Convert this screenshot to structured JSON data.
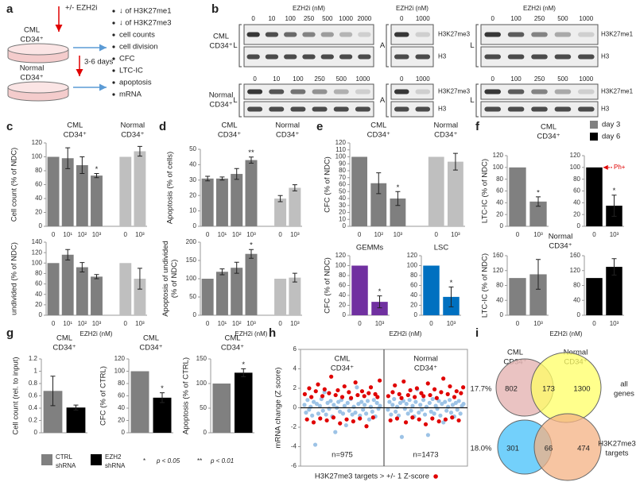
{
  "panel_labels": [
    "a",
    "b",
    "c",
    "d",
    "e",
    "f",
    "g",
    "h",
    "i"
  ],
  "panel_a": {
    "treatment": "+/- EZH2i",
    "samples": [
      [
        "CML",
        "CD34⁺"
      ],
      [
        "Normal",
        "CD34⁺"
      ]
    ],
    "duration": "3-6 days",
    "readouts": [
      "↓ of H3K27me1",
      "↓ of H3K27me3",
      "cell counts",
      "cell division",
      "CFC",
      "LTC-IC",
      "apoptosis",
      "mRNA"
    ]
  },
  "panel_b": {
    "dose_labels": [
      "EZH2i (nM)",
      "EZH2i (nM)",
      "EZH2i (nM)"
    ],
    "rows": [
      {
        "sample": [
          "CML",
          "CD34⁺"
        ],
        "fractions": [
          "L",
          "A",
          "L"
        ],
        "doses": [
          [
            0,
            10,
            100,
            250,
            500,
            1000,
            2000
          ],
          [
            0,
            1000
          ],
          [
            0,
            100,
            250,
            500,
            1000
          ]
        ],
        "bands": [
          [
            "H3K27me3",
            "H3"
          ],
          [
            "H3K27me1",
            "H3"
          ]
        ]
      },
      {
        "sample": [
          "Normal",
          "CD34⁺"
        ],
        "fractions": [
          "L",
          "A",
          "L"
        ],
        "doses": [
          [
            0,
            10,
            100,
            250,
            500,
            1000
          ],
          [
            0,
            1000
          ],
          [
            0,
            100,
            250,
            500,
            1000
          ]
        ],
        "bands": [
          [
            "H3K27me3",
            "H3"
          ],
          [
            "H3K27me1",
            "H3"
          ]
        ]
      }
    ]
  },
  "chart_data": [
    {
      "type": "bar",
      "group_labels": [
        [
          "CML",
          "CD34⁺"
        ],
        [
          "Normal",
          "CD34⁺"
        ]
      ],
      "ylabel": "Cell count (% of NDC)",
      "categories": [
        "0",
        "10¹",
        "10²",
        "10³",
        null,
        "0",
        "10³"
      ],
      "values": [
        100,
        98,
        88,
        73,
        null,
        100,
        108
      ],
      "errors": [
        null,
        15,
        12,
        3,
        null,
        null,
        7
      ],
      "colors": [
        "#7f7f7f",
        "#7f7f7f",
        "#7f7f7f",
        "#7f7f7f",
        null,
        "#bfbfbf",
        "#bfbfbf"
      ],
      "significance": [
        null,
        null,
        null,
        "*",
        null,
        null,
        null
      ],
      "ylim": [
        0,
        120
      ],
      "yticks": [
        0,
        20,
        40,
        60,
        80,
        100,
        120
      ]
    },
    {
      "type": "bar",
      "ylabel": "undivided (% of NDC)",
      "xlabel": "EZH2i (nM)",
      "categories": [
        "0",
        "10¹",
        "10²",
        "10³",
        null,
        "0",
        "10³"
      ],
      "values": [
        100,
        116,
        92,
        74,
        null,
        100,
        70
      ],
      "errors": [
        null,
        10,
        9,
        4,
        null,
        null,
        20
      ],
      "colors": [
        "#7f7f7f",
        "#7f7f7f",
        "#7f7f7f",
        "#7f7f7f",
        null,
        "#bfbfbf",
        "#bfbfbf"
      ],
      "ylim": [
        0,
        140
      ],
      "yticks": [
        0,
        20,
        40,
        60,
        80,
        100,
        120,
        140
      ]
    },
    {
      "type": "bar",
      "group_labels": [
        [
          "CML",
          "CD34⁺"
        ],
        [
          "Normal",
          "CD34⁺"
        ]
      ],
      "ylabel": "Apoptosis (% of cells)",
      "categories": [
        "0",
        "10¹",
        "10²",
        "10³",
        null,
        "0",
        "10³"
      ],
      "values": [
        31,
        31,
        34,
        43,
        null,
        18,
        25
      ],
      "errors": [
        1.5,
        1,
        3.5,
        2,
        null,
        2,
        2
      ],
      "colors": [
        "#7f7f7f",
        "#7f7f7f",
        "#7f7f7f",
        "#7f7f7f",
        null,
        "#bfbfbf",
        "#bfbfbf"
      ],
      "significance": [
        null,
        null,
        null,
        "**",
        null,
        null,
        null
      ],
      "ylim": [
        0,
        50
      ],
      "yticks": [
        0,
        10,
        20,
        30,
        40,
        50
      ]
    },
    {
      "type": "bar",
      "ylabel": [
        "Apoptosis of undivided",
        "(% of NDC)"
      ],
      "xlabel": "EZH2i (nM)",
      "categories": [
        "0",
        "10¹",
        "10²",
        "10³",
        null,
        "0",
        "10³"
      ],
      "values": [
        100,
        119,
        130,
        168,
        null,
        100,
        103
      ],
      "errors": [
        null,
        8,
        15,
        12,
        null,
        null,
        12
      ],
      "colors": [
        "#7f7f7f",
        "#7f7f7f",
        "#7f7f7f",
        "#7f7f7f",
        null,
        "#bfbfbf",
        "#bfbfbf"
      ],
      "significance": [
        null,
        null,
        null,
        "*",
        null,
        null,
        null
      ],
      "ylim": [
        0,
        200
      ],
      "yticks": [
        0,
        50,
        100,
        150,
        200
      ]
    },
    {
      "type": "bar",
      "group_labels": [
        [
          "CML",
          "CD34⁺"
        ],
        [
          "Normal",
          "CD34⁺"
        ]
      ],
      "ylabel": "CFC (% of NDC)",
      "categories": [
        "0",
        "10²",
        "10³",
        null,
        "0",
        "10³"
      ],
      "values": [
        100,
        62,
        40,
        null,
        100,
        93
      ],
      "errors": [
        null,
        15,
        10,
        null,
        null,
        12
      ],
      "colors": [
        "#7f7f7f",
        "#7f7f7f",
        "#7f7f7f",
        null,
        "#bfbfbf",
        "#bfbfbf"
      ],
      "significance": [
        null,
        null,
        "*",
        null,
        null,
        null
      ],
      "ylim": [
        0,
        120
      ],
      "yticks": [
        0,
        10,
        20,
        30,
        40,
        50,
        60,
        70,
        80,
        90,
        100,
        110,
        120
      ]
    },
    {
      "type": "bar",
      "title": "GEMMs",
      "ylabel": "CFC (% of NDC)",
      "xlabel": "EZH2i (nM)",
      "categories": [
        "0",
        "10³"
      ],
      "values": [
        100,
        27
      ],
      "errors": [
        null,
        12
      ],
      "colors": [
        "#7030a0",
        "#7030a0"
      ],
      "significance": [
        null,
        "*"
      ],
      "ylim": [
        0,
        120
      ],
      "yticks": [
        0,
        20,
        40,
        60,
        80,
        100,
        120
      ]
    },
    {
      "type": "bar",
      "title": "LSC",
      "categories": [
        "0",
        "10³"
      ],
      "values": [
        100,
        37
      ],
      "errors": [
        null,
        20
      ],
      "colors": [
        "#0070c0",
        "#0070c0"
      ],
      "significance": [
        null,
        "*"
      ],
      "ylim": [
        0,
        120
      ],
      "yticks": [
        0,
        20,
        40,
        60,
        80,
        100,
        120
      ]
    },
    {
      "type": "bar",
      "title": [
        "CML",
        "CD34⁺"
      ],
      "ylabel": "LTC-IC (% of NDC)",
      "categories": [
        "0",
        "10³"
      ],
      "values": [
        100,
        42
      ],
      "errors": [
        null,
        8
      ],
      "colors": [
        "#808080",
        "#808080"
      ],
      "significance": [
        null,
        "*"
      ],
      "ylim": [
        0,
        120
      ],
      "yticks": [
        0,
        20,
        40,
        60,
        80,
        100,
        120
      ]
    },
    {
      "type": "bar",
      "annotation": "Ph+",
      "annotation_color": "#e00000",
      "categories": [
        "0",
        "10³"
      ],
      "values": [
        100,
        35
      ],
      "errors": [
        null,
        18
      ],
      "colors": [
        "#000000",
        "#000000"
      ],
      "significance": [
        null,
        "*"
      ],
      "ylim": [
        0,
        120
      ],
      "yticks": [
        0,
        20,
        40,
        60,
        80,
        100,
        120
      ]
    },
    {
      "type": "bar",
      "title": [
        "Normal",
        "CD34⁺"
      ],
      "ylabel": "LTC-IC (% of NDC)",
      "xlabel": "EZH2i (nM)",
      "categories": [
        "0",
        "10³"
      ],
      "values": [
        100,
        110
      ],
      "errors": [
        null,
        40
      ],
      "colors": [
        "#808080",
        "#808080"
      ],
      "ylim": [
        0,
        160
      ],
      "yticks": [
        0,
        40,
        80,
        120,
        160
      ]
    },
    {
      "type": "bar",
      "categories": [
        "0",
        "10³"
      ],
      "values": [
        100,
        130
      ],
      "errors": [
        null,
        22
      ],
      "colors": [
        "#000000",
        "#000000"
      ],
      "ylim": [
        0,
        160
      ],
      "yticks": [
        0,
        40,
        80,
        120,
        160
      ]
    },
    {
      "type": "bar",
      "title": [
        "CML",
        "CD34⁺"
      ],
      "ylabel": "Cell count (rel. to input)",
      "values": [
        0.68,
        0.41
      ],
      "errors": [
        0.24,
        0.04
      ],
      "colors": [
        "#808080",
        "#000000"
      ],
      "ylim": [
        0,
        1.2
      ],
      "yticks": [
        0,
        0.2,
        0.4,
        0.6,
        0.8,
        1,
        1.2
      ]
    },
    {
      "type": "bar",
      "title": [
        "CML",
        "CD34⁺"
      ],
      "ylabel": "CFC (% of CTRL)",
      "values": [
        100,
        57
      ],
      "errors": [
        null,
        8
      ],
      "colors": [
        "#808080",
        "#000000"
      ],
      "significance": [
        null,
        "*"
      ],
      "ylim": [
        0,
        120
      ],
      "yticks": [
        0,
        20,
        40,
        60,
        80,
        100,
        120
      ]
    },
    {
      "type": "bar",
      "title": [
        "CML",
        "CD34⁺"
      ],
      "ylabel": "Apoptosis (% of CTRL)",
      "values": [
        100,
        122
      ],
      "errors": [
        null,
        8
      ],
      "colors": [
        "#808080",
        "#000000"
      ],
      "significance": [
        null,
        "*"
      ],
      "ylim": [
        0,
        150
      ],
      "yticks": [
        0,
        50,
        100,
        150
      ]
    },
    {
      "type": "scatter",
      "ylabel": "mRNA change (Z score)",
      "ylim": [
        -6,
        6
      ],
      "yticks": [
        -6,
        -4,
        -2,
        0,
        2,
        4,
        6
      ],
      "legend": "H3K27me3 targets > +/- 1 Z-score",
      "legend_color": "#e00000",
      "panels": [
        {
          "title": [
            "CML",
            "CD34⁺"
          ],
          "count_label": "n=975",
          "series": [
            {
              "color": "#9dc3e6",
              "values": [
                0.3,
                -0.5,
                0.8,
                -0.2,
                0.1,
                -0.8,
                0.6,
                -3.8,
                0.4,
                -0.6,
                0.2,
                0.9,
                -0.3,
                1.6,
                -0.7,
                0.5,
                -0.1,
                0.7,
                -0.9,
                0.3,
                -2.5,
                0.0,
                0.6,
                -0.4,
                0.8,
                -0.6,
                0.2,
                -1.8,
                0.5,
                -0.3,
                0.9,
                -0.7,
                0.1,
                -0.5,
                2.1,
                0.4,
                -0.8,
                0.6,
                -0.2,
                0.3,
                -0.6,
                0.7,
                -1.2,
                0.1,
                -0.4,
                0.8,
                -0.9,
                0.5,
                -0.1,
                0.2
              ]
            },
            {
              "color": "#e00000",
              "values": [
                1.4,
                -1.2,
                2.0,
                1.1,
                -1.5,
                1.7,
                2.4,
                -1.1,
                1.2,
                1.9,
                -1.3,
                1.5,
                3.2,
                -1.0,
                1.3,
                1.8,
                -1.6,
                1.1,
                2.2,
                -1.2,
                1.6,
                1.0,
                -1.4,
                2.6,
                1.3,
                -1.1,
                1.7,
                1.2,
                -1.9,
                1.5,
                2.1,
                -1.0,
                1.4,
                1.1,
                2.8
              ]
            }
          ]
        },
        {
          "title": [
            "Normal",
            "CD34⁺"
          ],
          "count_label": "n=1473",
          "series": [
            {
              "color": "#9dc3e6",
              "values": [
                -0.2,
                0.6,
                -0.7,
                0.3,
                0.9,
                -0.4,
                0.1,
                -0.8,
                0.5,
                -3.0,
                0.7,
                -0.1,
                0.4,
                -0.6,
                0.8,
                -0.3,
                0.2,
                -0.9,
                0.6,
                1.9,
                -0.5,
                0.3,
                -0.2,
                0.8,
                -0.7,
                0.1,
                -2.8,
                0.5,
                -0.4,
                0.9,
                -0.6,
                0.2,
                -0.1,
                0.7,
                -0.8,
                0.4,
                -1.5,
                0.6,
                -0.3,
                0.1,
                0.8,
                -0.5,
                0.3,
                -0.9,
                0.5,
                -0.2,
                0.7,
                -0.6,
                0.2,
                0.4
              ]
            },
            {
              "color": "#e00000",
              "values": [
                1.2,
                -1.3,
                1.6,
                2.3,
                -1.1,
                1.4,
                1.0,
                2.7,
                -1.5,
                1.3,
                1.8,
                -1.0,
                1.1,
                2.0,
                -1.2,
                1.5,
                1.2,
                -1.7,
                2.5,
                1.3,
                -1.1,
                1.9,
                1.0,
                -1.4,
                1.6,
                3.0,
                -1.2,
                1.4,
                2.2,
                -1.0,
                1.1,
                1.7,
                -1.3,
                1.5,
                2.1
              ]
            }
          ]
        }
      ]
    }
  ],
  "panel_f_legend": [
    {
      "name": "day 3",
      "color": "#808080"
    },
    {
      "name": "day 6",
      "color": "#000000"
    }
  ],
  "panel_g_legend": {
    "series": [
      {
        "name": [
          "CTRL",
          "shRNA"
        ],
        "color": "#808080"
      },
      {
        "name": [
          "EZH2",
          "shRNA"
        ],
        "color": "#000000"
      }
    ],
    "significance": [
      {
        "symbol": "*",
        "meaning": "p < 0.05"
      },
      {
        "symbol": "**",
        "meaning": "p < 0.01"
      }
    ]
  },
  "panel_i": {
    "samples": [
      [
        "CML",
        "CD34⁺"
      ],
      [
        "Normal",
        "CD34⁺"
      ]
    ],
    "sets": [
      {
        "label": [
          "all",
          "genes"
        ],
        "percent": "17.7%",
        "counts": [
          802,
          173,
          1300
        ]
      },
      {
        "label": [
          "H3K27me3",
          "targets"
        ],
        "percent": "18.0%",
        "counts": [
          301,
          66,
          474
        ]
      }
    ]
  }
}
